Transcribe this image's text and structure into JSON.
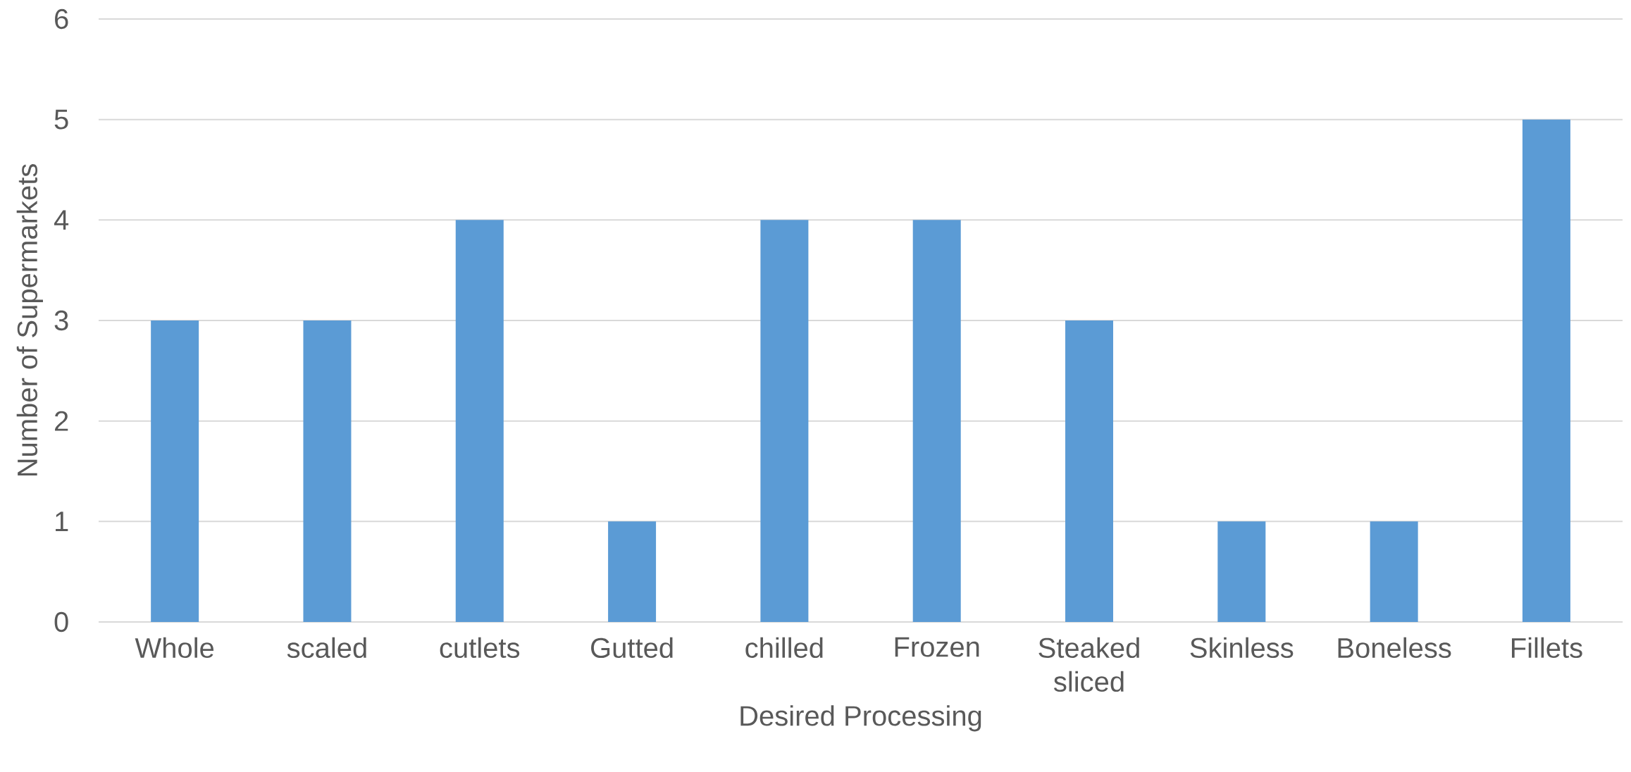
{
  "chart_data": {
    "type": "bar",
    "xlabel": "Desired Processing",
    "ylabel": "Number of Supermarkets",
    "categories": [
      "Whole",
      "scaled",
      "cutlets",
      "Gutted",
      "chilled",
      "Frozen",
      "Steaked sliced",
      "Skinless",
      "Boneless",
      "Fillets"
    ],
    "values": [
      3,
      3,
      4,
      1,
      4,
      4,
      3,
      1,
      1,
      5
    ],
    "color": "#5b9bd5",
    "ylim": [
      0,
      6
    ],
    "yticks": [
      0,
      1,
      2,
      3,
      4,
      5,
      6
    ],
    "grid": "y"
  }
}
